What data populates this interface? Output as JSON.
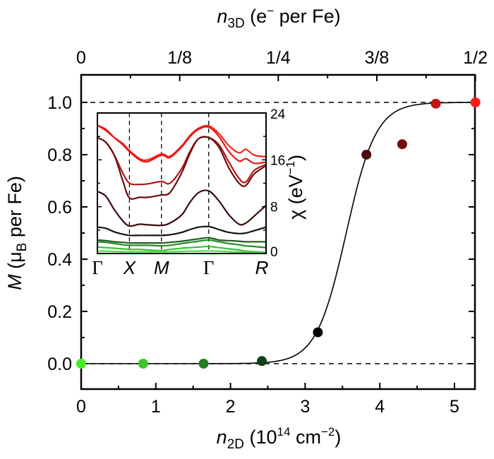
{
  "chart_data": [
    {
      "type": "scatter",
      "title": "",
      "xlabel": "n_2D (10^14 cm^-2)",
      "xlabel_parts": {
        "sym": "n",
        "sub": "2D",
        "rest": " (10",
        "sup": "14",
        "rest2": " cm",
        "sup2": "−2",
        "end": ")"
      },
      "ylabel": "M (μB per Fe)",
      "ylabel_parts": {
        "sym": "M",
        "rest": " (μ",
        "sub": "B",
        "end": " per Fe)"
      },
      "top_xlabel": "n_3D (e⁻ per Fe)",
      "top_xlabel_parts": {
        "sym": "n",
        "sub": "3D",
        "rest": " (e",
        "sup": "−",
        "end": " per Fe)"
      },
      "xlim": [
        0,
        5.3
      ],
      "ylim": [
        -0.13,
        1.1
      ],
      "x_ticks": [
        0,
        1,
        2,
        3,
        4,
        5
      ],
      "x_tick_labels": [
        "0",
        "1",
        "2",
        "3",
        "4",
        "5"
      ],
      "y_ticks": [
        0.0,
        0.2,
        0.4,
        0.6,
        0.8,
        1.0
      ],
      "y_tick_labels": [
        "0.0",
        "0.2",
        "0.4",
        "0.6",
        "0.8",
        "1.0"
      ],
      "top_ticks": [
        0,
        1.32,
        2.64,
        3.96,
        5.28
      ],
      "top_tick_labels": [
        "0",
        "1/8",
        "1/4",
        "3/8",
        "1/2"
      ],
      "reference_lines": [
        0.0,
        1.0
      ],
      "points": [
        {
          "x": 0.0,
          "y": 0.0,
          "color": "#44ee22"
        },
        {
          "x": 0.83,
          "y": 0.0,
          "color": "#3cc428"
        },
        {
          "x": 1.64,
          "y": 0.0,
          "color": "#237f1d"
        },
        {
          "x": 2.42,
          "y": 0.01,
          "color": "#10401a"
        },
        {
          "x": 3.17,
          "y": 0.12,
          "color": "#000000"
        },
        {
          "x": 3.82,
          "y": 0.8,
          "color": "#4a0a0a"
        },
        {
          "x": 4.3,
          "y": 0.84,
          "color": "#7a0c0c"
        },
        {
          "x": 4.75,
          "y": 0.995,
          "color": "#c41414"
        },
        {
          "x": 5.28,
          "y": 1.0,
          "color": "#ff1a1a"
        }
      ],
      "fit_curve": {
        "type": "sigmoid",
        "center": 3.55,
        "width": 0.2,
        "color": "#000000"
      },
      "grid": false,
      "legend": "none"
    },
    {
      "type": "line",
      "title": "inset",
      "ylabel": "χ (eV⁻¹)",
      "ylabel_parts": {
        "sym": "χ",
        "rest": " (eV",
        "sup": "−1",
        "end": ")"
      },
      "ylim": [
        0,
        24
      ],
      "y_ticks": [
        0,
        8,
        16,
        24
      ],
      "y_tick_labels": [
        "0",
        "8",
        "16",
        "24"
      ],
      "k_path": [
        "Γ",
        "X",
        "M",
        "Γ",
        "R"
      ],
      "k_positions": [
        0,
        0.19,
        0.38,
        0.66,
        1.0
      ],
      "x_sample": [
        0,
        0.05,
        0.1,
        0.15,
        0.19,
        0.25,
        0.3,
        0.38,
        0.43,
        0.5,
        0.55,
        0.6,
        0.66,
        0.72,
        0.78,
        0.84,
        0.88,
        0.93,
        1.0
      ],
      "series": [
        {
          "color": "#ff2020",
          "values": [
            21.9,
            21.0,
            19.8,
            18.8,
            17.6,
            16.2,
            16.0,
            17.0,
            16.6,
            18.4,
            20.2,
            21.4,
            21.8,
            20.5,
            18.4,
            17.2,
            17.8,
            16.8,
            16.5
          ]
        },
        {
          "color": "#e01818",
          "values": [
            21.9,
            21.2,
            19.8,
            18.6,
            17.4,
            16.0,
            15.7,
            16.8,
            16.4,
            18.2,
            20.0,
            21.2,
            21.6,
            20.0,
            17.4,
            15.8,
            16.2,
            15.4,
            15.6
          ]
        },
        {
          "color": "#b51414",
          "values": [
            19.8,
            19.0,
            16.8,
            13.8,
            12.0,
            11.8,
            11.9,
            12.3,
            12.0,
            14.5,
            17.5,
            19.6,
            19.8,
            18.6,
            15.6,
            12.8,
            12.2,
            14.2,
            15.2
          ]
        },
        {
          "color": "#6a0e0e",
          "values": [
            19.8,
            19.0,
            16.8,
            12.5,
            9.5,
            9.6,
            9.6,
            10.0,
            10.4,
            13.8,
            17.2,
            19.6,
            19.8,
            18.2,
            14.6,
            12.0,
            11.6,
            13.6,
            15.0
          ]
        },
        {
          "color": "#3a0a0a",
          "values": [
            10.6,
            9.8,
            7.5,
            5.6,
            4.7,
            5.0,
            4.9,
            4.8,
            5.2,
            6.6,
            8.8,
            10.4,
            10.7,
            9.0,
            6.6,
            5.0,
            5.2,
            6.4,
            8.2
          ]
        },
        {
          "color": "#111111",
          "values": [
            4.5,
            4.3,
            3.7,
            3.3,
            3.1,
            3.1,
            3.1,
            3.1,
            3.2,
            3.6,
            4.1,
            4.5,
            4.6,
            4.1,
            3.6,
            3.4,
            3.5,
            3.9,
            4.5
          ]
        },
        {
          "color": "#1f5f1f",
          "values": [
            2.3,
            2.2,
            2.0,
            1.9,
            1.8,
            1.8,
            1.8,
            1.8,
            1.9,
            2.1,
            2.3,
            2.5,
            2.7,
            2.3,
            2.2,
            2.1,
            2.0,
            2.0,
            2.0
          ]
        },
        {
          "color": "#2a8a2a",
          "values": [
            2.0,
            1.9,
            1.7,
            1.5,
            1.4,
            1.4,
            1.4,
            1.3,
            1.4,
            1.7,
            1.9,
            2.1,
            2.3,
            2.0,
            1.7,
            1.5,
            1.3,
            1.2,
            1.0
          ]
        },
        {
          "color": "#3cbf3c",
          "values": [
            1.1,
            1.0,
            0.9,
            0.8,
            0.7,
            0.7,
            0.6,
            0.5,
            0.7,
            0.9,
            1.0,
            1.1,
            1.2,
            1.0,
            0.8,
            0.6,
            0.4,
            0.3,
            0.2
          ]
        },
        {
          "color": "#44e044",
          "values": [
            0.4,
            0.4,
            0.35,
            0.3,
            0.3,
            0.3,
            0.3,
            0.3,
            0.3,
            0.35,
            0.4,
            0.4,
            0.45,
            0.4,
            0.3,
            0.25,
            0.2,
            0.15,
            0.1
          ]
        }
      ]
    }
  ]
}
